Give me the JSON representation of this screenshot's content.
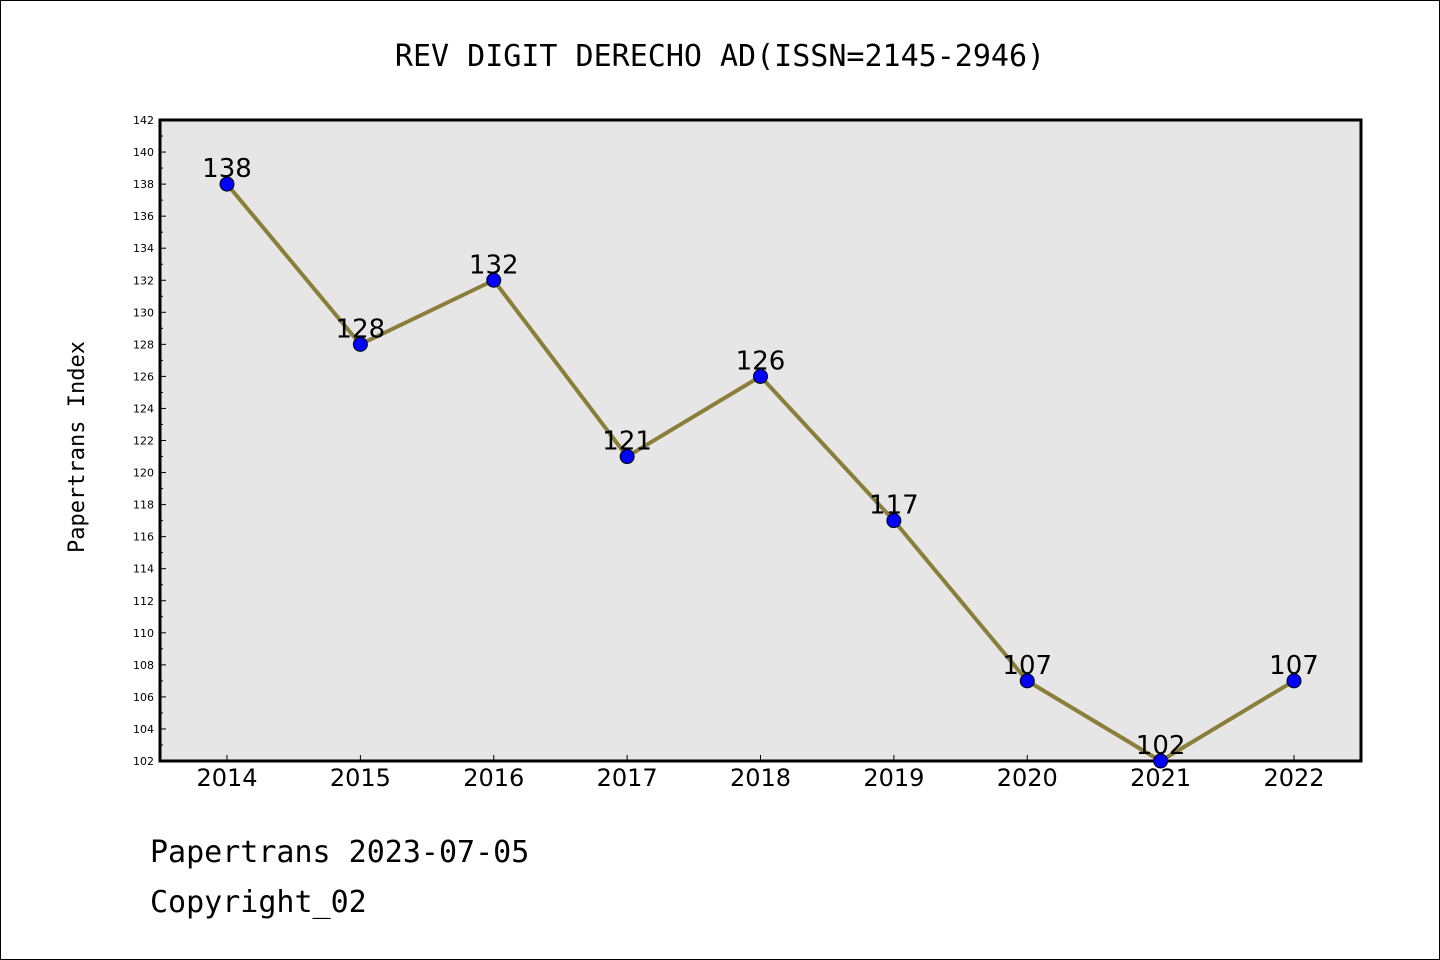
{
  "chart_data": {
    "type": "line",
    "title": "REV DIGIT DERECHO AD(ISSN=2145-2946)",
    "xlabel": "",
    "ylabel": "Papertrans Index",
    "categories": [
      "2014",
      "2015",
      "2016",
      "2017",
      "2018",
      "2019",
      "2020",
      "2021",
      "2022"
    ],
    "values": [
      138,
      128,
      132,
      121,
      126,
      117,
      107,
      102,
      107
    ],
    "data_labels": [
      "138",
      "128",
      "132",
      "121",
      "126",
      "117",
      "107",
      "102",
      "107"
    ],
    "ylim": [
      102,
      142
    ],
    "yticks": [
      "102",
      "104",
      "106",
      "108",
      "110",
      "112",
      "114",
      "116",
      "118",
      "120",
      "122",
      "124",
      "126",
      "128",
      "130",
      "132",
      "134",
      "136",
      "138",
      "140",
      "142"
    ],
    "grid": false,
    "colors": {
      "line": "#8b7d3a",
      "marker": "#0000ff",
      "plot_background": "#e6e6e6"
    }
  },
  "footer": {
    "line1": "Papertrans 2023-07-05",
    "line2": "Copyright_02"
  }
}
